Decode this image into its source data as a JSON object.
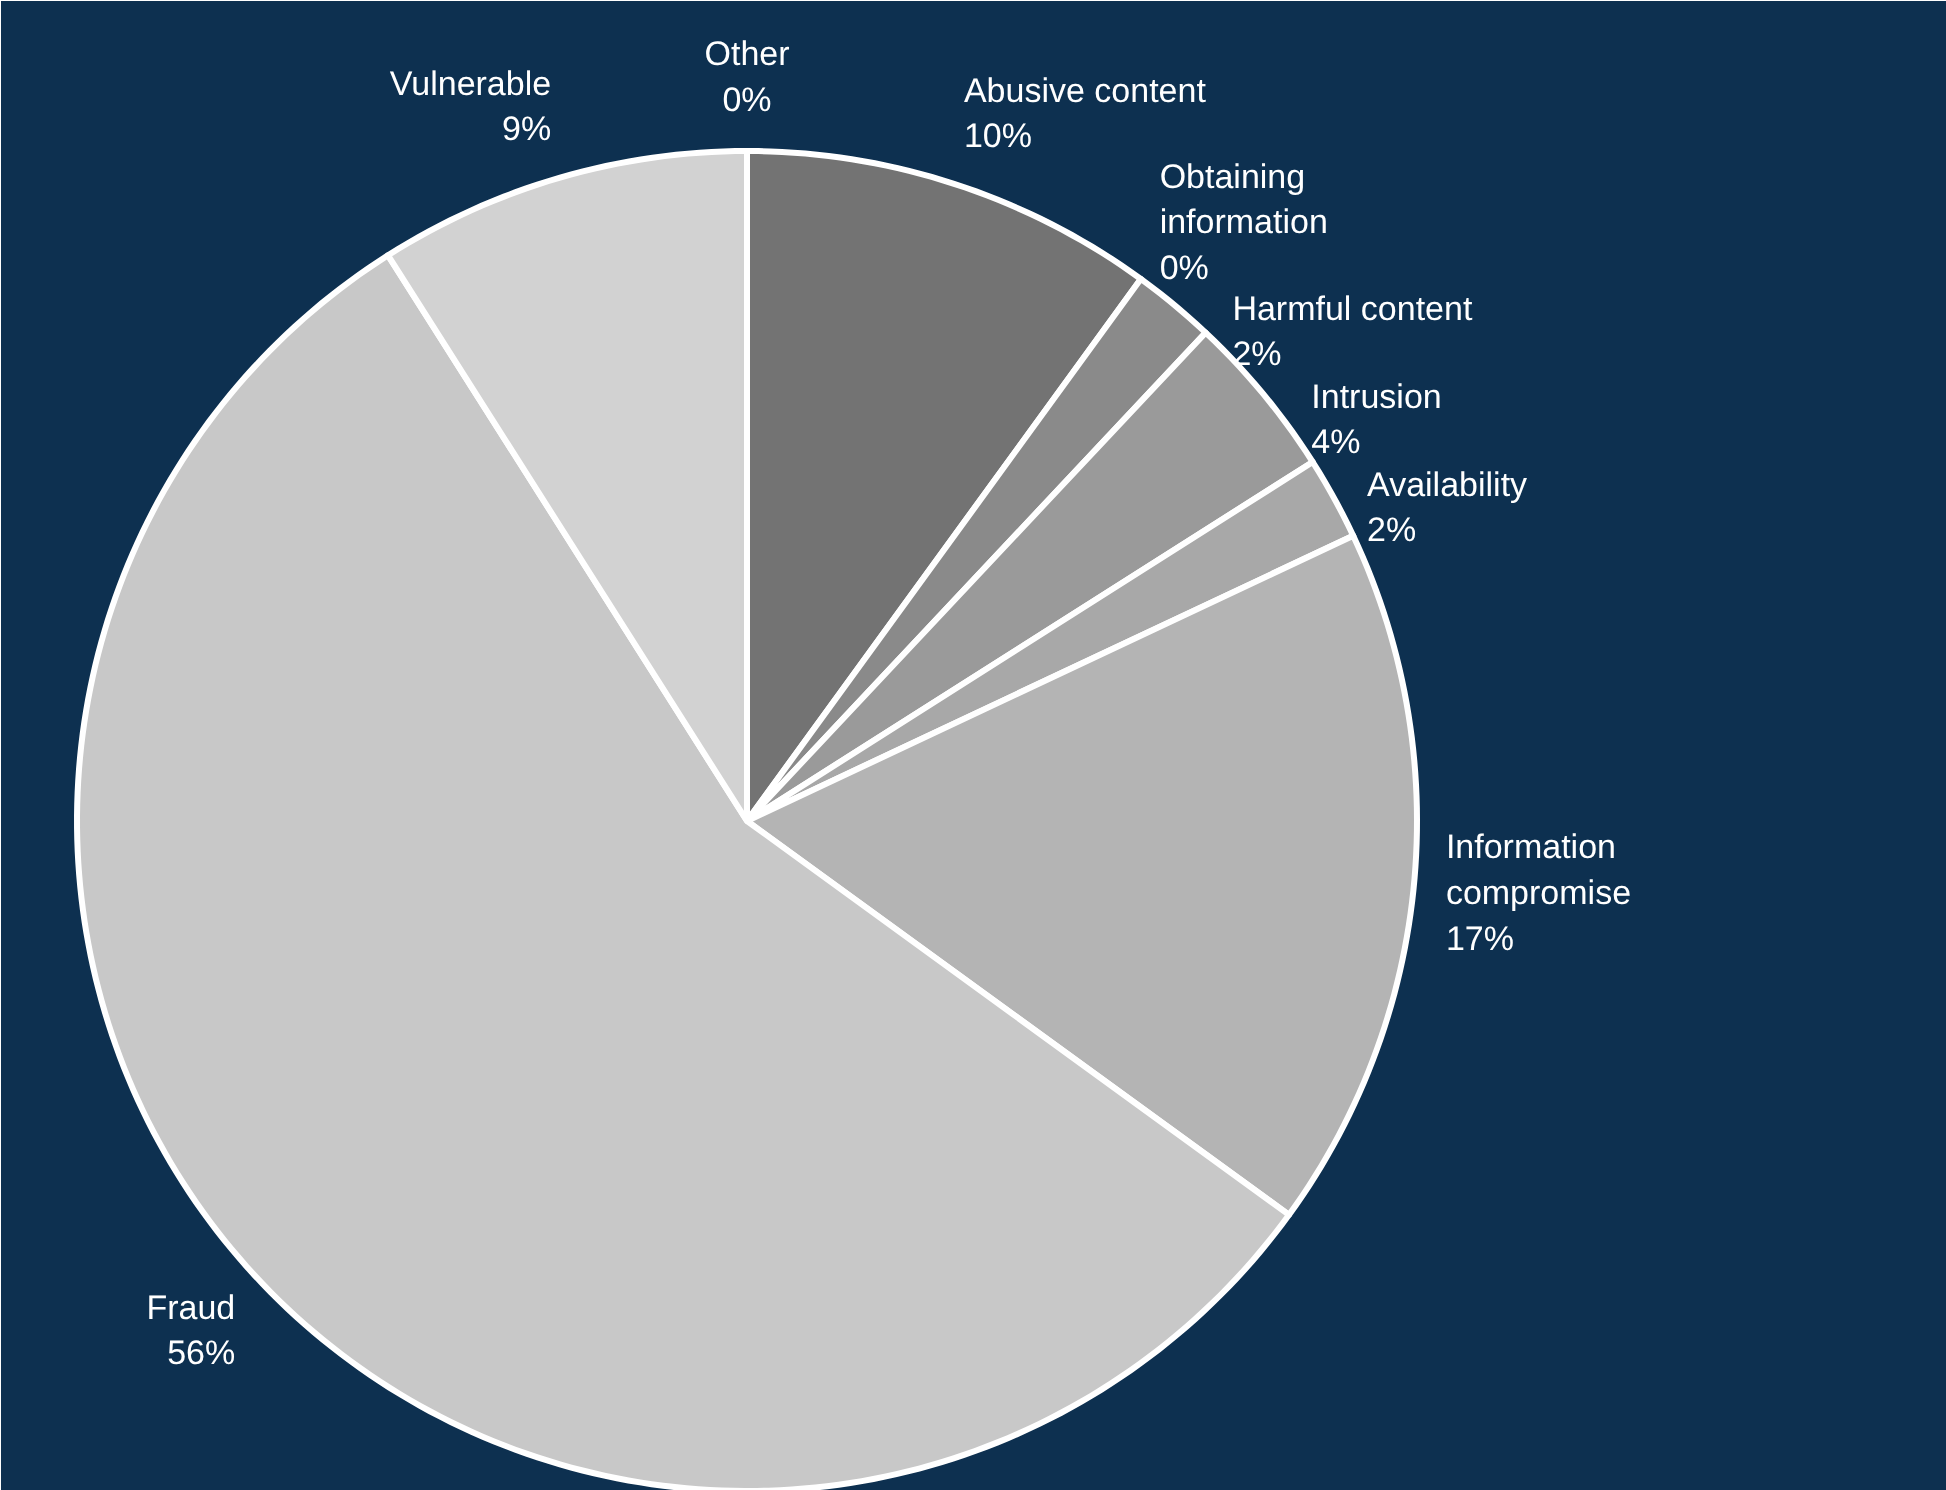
{
  "chart_data": {
    "type": "pie",
    "categories": [
      "Abusive content",
      "Obtaining information",
      "Harmful content",
      "Intrusion",
      "Availability",
      "Information compromise",
      "Fraud",
      "Vulnerable",
      "Other"
    ],
    "values": [
      10,
      0,
      2,
      4,
      2,
      17,
      56,
      9,
      0
    ],
    "colors": [
      "#737373",
      "#d0d0d0",
      "#8a8a8a",
      "#9a9a9a",
      "#a8a8a8",
      "#b4b4b4",
      "#c8c8c8",
      "#d2d2d2",
      "#dcdcdc"
    ],
    "value_labels": [
      "10%",
      "0%",
      "2%",
      "4%",
      "2%",
      "17%",
      "56%",
      "9%",
      "0%"
    ]
  }
}
